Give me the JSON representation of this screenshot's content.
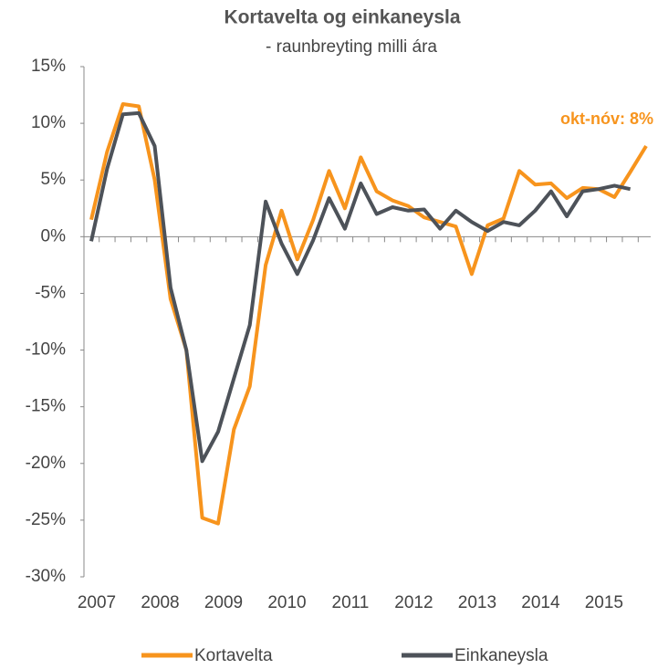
{
  "chart_data": {
    "type": "line",
    "title": "Kortavelta og einkaneysla",
    "subtitle": "- raunbreyting  milli ára",
    "annotation": "okt-nóv: 8%",
    "categories": [
      "2007",
      null,
      null,
      null,
      "2008",
      null,
      null,
      null,
      "2009",
      null,
      null,
      null,
      "2010",
      null,
      null,
      null,
      "2011",
      null,
      null,
      null,
      "2012",
      null,
      null,
      null,
      "2013",
      null,
      null,
      null,
      "2014",
      null,
      null,
      null,
      "2015",
      null,
      null,
      null
    ],
    "series": [
      {
        "name": "Kortavelta",
        "color": "#f7941d",
        "values": [
          1.5,
          7.5,
          11.7,
          11.5,
          5,
          -5.5,
          -10,
          -24.8,
          -25.3,
          -17,
          -13.2,
          -2.5,
          2.3,
          -2,
          1.5,
          5.8,
          2.5,
          7,
          4,
          3.2,
          2.7,
          1.7,
          1.3,
          0.9,
          -3.3,
          1,
          1.6,
          5.8,
          4.6,
          4.7,
          3.4,
          4.3,
          4.2,
          3.5,
          5.7,
          8
        ]
      },
      {
        "name": "Einkaneysla",
        "color": "#4d5259",
        "values": [
          -0.4,
          6,
          10.8,
          10.9,
          8,
          -4.5,
          -10,
          -19.8,
          -17.2,
          -12.5,
          -7.8,
          3.1,
          -0.6,
          -3.3,
          -0.3,
          3.4,
          0.7,
          4.7,
          2,
          2.6,
          2.3,
          2.4,
          0.7,
          2.3,
          1.3,
          0.5,
          1.3,
          1,
          2.3,
          4,
          1.8,
          4,
          4.2,
          4.5,
          4.2,
          null
        ]
      }
    ],
    "ylim": [
      -30,
      15
    ],
    "yticks": [
      {
        "value": -30,
        "label": "-30%"
      },
      {
        "value": -25,
        "label": "-25%"
      },
      {
        "value": -20,
        "label": "-20%"
      },
      {
        "value": -15,
        "label": "-15%"
      },
      {
        "value": -10,
        "label": "-10%"
      },
      {
        "value": -5,
        "label": "-5%"
      },
      {
        "value": 0,
        "label": "0%"
      },
      {
        "value": 5,
        "label": "5%"
      },
      {
        "value": 10,
        "label": "10%"
      },
      {
        "value": 15,
        "label": "15%"
      }
    ],
    "legend": "bottom"
  }
}
